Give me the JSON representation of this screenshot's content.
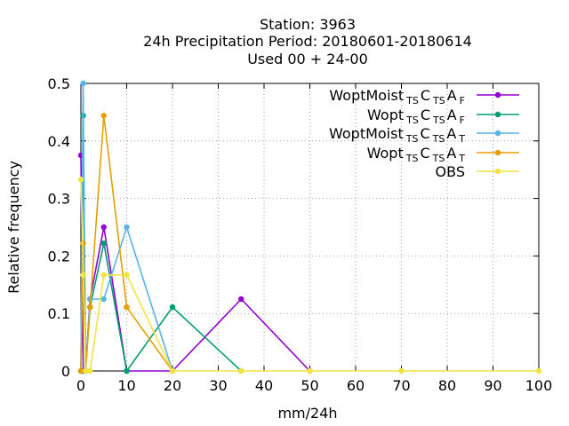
{
  "title": {
    "line1": "Station:     3963",
    "line2": "24h Precipitation  Period: 20180601-20180614",
    "line3": "Used  00 + 24-00"
  },
  "chart_data": {
    "type": "line",
    "xlabel": "mm/24h",
    "ylabel": "Relative frequency",
    "xlim": [
      0,
      100
    ],
    "ylim": [
      0,
      0.5
    ],
    "xticks": [
      "0",
      "10",
      "20",
      "30",
      "40",
      "50",
      "60",
      "70",
      "80",
      "90",
      "100"
    ],
    "yticks": [
      "0",
      "0.1",
      "0.2",
      "0.3",
      "0.4",
      "0.5"
    ],
    "grid": true,
    "legend_position": "top-right",
    "series": [
      {
        "legend": {
          "base": "WoptMoist",
          "parts": [
            [
              "TS",
              "sub"
            ],
            [
              "C",
              "norm"
            ],
            [
              "TS",
              "sub"
            ],
            [
              "A",
              "norm"
            ],
            [
              "F",
              "sub"
            ]
          ]
        },
        "color": "#9400d3",
        "marker": "circle",
        "x": [
          0,
          0.5,
          1,
          2,
          5,
          10,
          20,
          35,
          50
        ],
        "y": [
          0.375,
          0.0,
          0.0,
          0.125,
          0.25,
          0.0,
          0.0,
          0.125,
          0.0
        ]
      },
      {
        "legend": {
          "base": "Wopt",
          "parts": [
            [
              "TS",
              "sub"
            ],
            [
              "C",
              "norm"
            ],
            [
              "TS",
              "sub"
            ],
            [
              "A",
              "norm"
            ],
            [
              "F",
              "sub"
            ]
          ]
        },
        "color": "#009e73",
        "marker": "circle",
        "x": [
          0,
          0.5,
          1,
          2,
          5,
          10,
          20,
          35
        ],
        "y": [
          0.0,
          0.444,
          0.0,
          0.111,
          0.222,
          0.0,
          0.111,
          0.0
        ]
      },
      {
        "legend": {
          "base": "WoptMoist",
          "parts": [
            [
              "TS",
              "sub"
            ],
            [
              "C",
              "norm"
            ],
            [
              "TS",
              "sub"
            ],
            [
              "A",
              "norm"
            ],
            [
              "T",
              "sub"
            ]
          ]
        },
        "color": "#56b4e9",
        "marker": "circle",
        "x": [
          0,
          0.5,
          1,
          2,
          5,
          10,
          20
        ],
        "y": [
          0.0,
          0.5,
          0.0,
          0.125,
          0.125,
          0.25,
          0.0
        ]
      },
      {
        "legend": {
          "base": "Wopt",
          "parts": [
            [
              "TS",
              "sub"
            ],
            [
              "C",
              "norm"
            ],
            [
              "TS",
              "sub"
            ],
            [
              "A",
              "norm"
            ],
            [
              "T",
              "sub"
            ]
          ]
        },
        "color": "#e69f00",
        "marker": "circle",
        "x": [
          0,
          0.5,
          1,
          2,
          5,
          10,
          20
        ],
        "y": [
          0.0,
          0.222,
          0.0,
          0.111,
          0.444,
          0.111,
          0.0
        ]
      },
      {
        "legend": {
          "base": "OBS",
          "parts": []
        },
        "color": "#f0e442",
        "marker": "circle",
        "x": [
          0,
          0.5,
          1,
          2,
          5,
          10,
          20,
          35,
          50,
          70,
          100
        ],
        "y": [
          0.333,
          0.167,
          0.0,
          0.0,
          0.167,
          0.167,
          0.0,
          0.0,
          0.0,
          0.0,
          0.0
        ]
      }
    ]
  }
}
